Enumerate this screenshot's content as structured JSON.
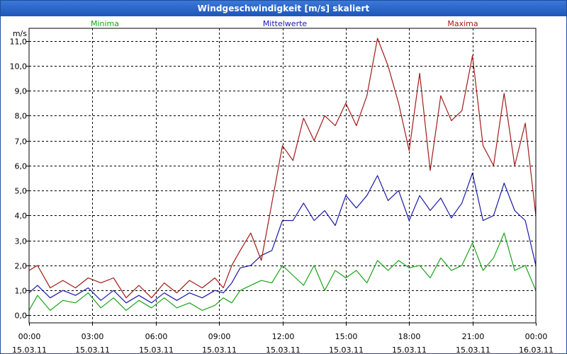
{
  "window": {
    "title": "Windgeschwindigkeit [m/s] skaliert"
  },
  "colors": {
    "minima": "#1aa31a",
    "mittelwerte": "#1a1aa8",
    "maxima": "#a31a1a",
    "grid": "#000000"
  },
  "chart_data": {
    "type": "line",
    "title": "Windgeschwindigkeit [m/s] skaliert",
    "ylabel": "m/s",
    "xlabel": "",
    "ylim": [
      -0.3,
      11.5
    ],
    "xlim": [
      0,
      24
    ],
    "grid": true,
    "yticks": [
      {
        "value": 0,
        "label": "0,0"
      },
      {
        "value": 1,
        "label": "1,0"
      },
      {
        "value": 2,
        "label": "2,0"
      },
      {
        "value": 3,
        "label": "3,0"
      },
      {
        "value": 4,
        "label": "4,0"
      },
      {
        "value": 5,
        "label": "5,0"
      },
      {
        "value": 6,
        "label": "6,0"
      },
      {
        "value": 7,
        "label": "7,0"
      },
      {
        "value": 8,
        "label": "8,0"
      },
      {
        "value": 9,
        "label": "9,0"
      },
      {
        "value": 10,
        "label": "10,0"
      },
      {
        "value": 11,
        "label": "11,0"
      }
    ],
    "xticks": [
      {
        "value": 0,
        "time": "00:00",
        "date": "15.03.11"
      },
      {
        "value": 3,
        "time": "03:00",
        "date": "15.03.11"
      },
      {
        "value": 6,
        "time": "06:00",
        "date": "15.03.11"
      },
      {
        "value": 9,
        "time": "09:00",
        "date": "15.03.11"
      },
      {
        "value": 12,
        "time": "12:00",
        "date": "15.03.11"
      },
      {
        "value": 15,
        "time": "15:00",
        "date": "15.03.11"
      },
      {
        "value": 18,
        "time": "18:00",
        "date": "15.03.11"
      },
      {
        "value": 21,
        "time": "21:00",
        "date": "15.03.11"
      },
      {
        "value": 24,
        "time": "00:00",
        "date": "16.03.11"
      }
    ],
    "series": [
      {
        "name": "Minima",
        "key": "minima",
        "x": [
          0,
          0.4,
          1.0,
          1.6,
          2.2,
          2.8,
          3.4,
          4.0,
          4.6,
          5.2,
          5.8,
          6.4,
          7.0,
          7.6,
          8.2,
          8.8,
          9.2,
          9.6,
          10.0,
          10.5,
          11.0,
          11.5,
          12.0,
          12.5,
          13.0,
          13.5,
          14.0,
          14.5,
          15.0,
          15.5,
          16.0,
          16.5,
          17.0,
          17.5,
          18.0,
          18.5,
          19.0,
          19.5,
          20.0,
          20.5,
          21.0,
          21.5,
          22.0,
          22.5,
          23.0,
          23.5,
          24.0
        ],
        "values": [
          0.2,
          0.8,
          0.2,
          0.6,
          0.5,
          0.9,
          0.3,
          0.7,
          0.2,
          0.6,
          0.3,
          0.7,
          0.3,
          0.5,
          0.2,
          0.4,
          0.7,
          0.5,
          1.0,
          1.2,
          1.4,
          1.3,
          2.0,
          1.6,
          1.2,
          2.0,
          1.0,
          1.8,
          1.5,
          1.8,
          1.3,
          2.2,
          1.8,
          2.2,
          1.9,
          2.0,
          1.5,
          2.3,
          1.8,
          2.0,
          2.9,
          1.8,
          2.3,
          3.3,
          1.8,
          2.0,
          1.0
        ]
      },
      {
        "name": "Mittelwerte",
        "key": "mittelwerte",
        "x": [
          0,
          0.4,
          1.0,
          1.6,
          2.2,
          2.8,
          3.4,
          4.0,
          4.6,
          5.2,
          5.8,
          6.4,
          7.0,
          7.6,
          8.2,
          8.8,
          9.2,
          9.6,
          10.0,
          10.5,
          11.0,
          11.5,
          12.0,
          12.5,
          13.0,
          13.5,
          14.0,
          14.5,
          15.0,
          15.5,
          16.0,
          16.5,
          17.0,
          17.5,
          18.0,
          18.5,
          19.0,
          19.5,
          20.0,
          20.5,
          21.0,
          21.5,
          22.0,
          22.5,
          23.0,
          23.5,
          24.0
        ],
        "values": [
          0.9,
          1.2,
          0.7,
          1.0,
          0.8,
          1.1,
          0.6,
          1.0,
          0.5,
          0.8,
          0.5,
          0.9,
          0.6,
          0.9,
          0.7,
          1.0,
          0.9,
          1.3,
          1.9,
          2.0,
          2.4,
          2.6,
          3.8,
          3.8,
          4.5,
          3.8,
          4.2,
          3.6,
          4.8,
          4.3,
          4.8,
          5.6,
          4.6,
          5.0,
          3.8,
          4.8,
          4.2,
          4.7,
          3.9,
          4.5,
          5.7,
          3.8,
          4.0,
          5.3,
          4.2,
          3.8,
          2.0
        ]
      },
      {
        "name": "Maxima",
        "key": "maxima",
        "x": [
          0,
          0.4,
          1.0,
          1.6,
          2.2,
          2.8,
          3.4,
          4.0,
          4.6,
          5.2,
          5.8,
          6.4,
          7.0,
          7.6,
          8.2,
          8.8,
          9.2,
          9.6,
          10.0,
          10.5,
          11.0,
          11.5,
          12.0,
          12.5,
          13.0,
          13.5,
          14.0,
          14.5,
          15.0,
          15.5,
          16.0,
          16.5,
          17.0,
          17.5,
          18.0,
          18.5,
          19.0,
          19.5,
          20.0,
          20.5,
          21.0,
          21.5,
          22.0,
          22.5,
          23.0,
          23.5,
          24.0
        ],
        "values": [
          1.8,
          2.0,
          1.1,
          1.4,
          1.1,
          1.5,
          1.3,
          1.5,
          0.7,
          1.2,
          0.7,
          1.3,
          0.9,
          1.4,
          1.1,
          1.5,
          1.1,
          2.0,
          2.6,
          3.3,
          2.2,
          4.5,
          6.8,
          6.2,
          7.9,
          7.0,
          8.0,
          7.6,
          8.5,
          7.6,
          8.8,
          11.1,
          10.0,
          8.5,
          6.6,
          9.7,
          5.8,
          8.8,
          7.8,
          8.2,
          10.4,
          6.8,
          6.0,
          8.9,
          6.0,
          7.7,
          4.0
        ]
      }
    ]
  }
}
